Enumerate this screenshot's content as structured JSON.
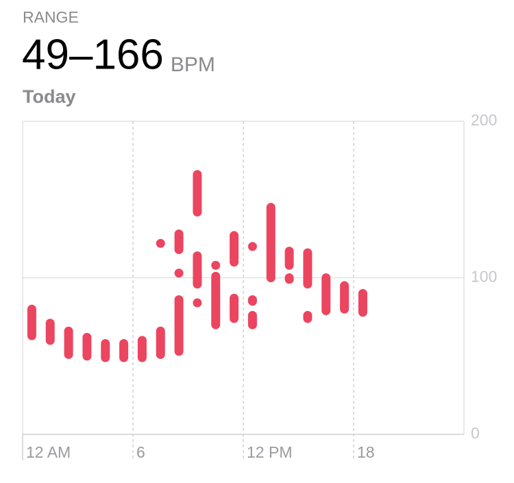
{
  "chart_data": {
    "type": "range-bar",
    "label": "RANGE",
    "headline": "49–166",
    "unit": "BPM",
    "period": "Today",
    "color": "#eb4560",
    "xlim": [
      0,
      24
    ],
    "xticks": [
      {
        "value": 0,
        "label": "12 AM"
      },
      6,
      {
        "value": 12,
        "label": "12 PM"
      },
      18
    ],
    "ylim": [
      0,
      200
    ],
    "yticks": [
      0,
      100,
      200
    ],
    "bars": [
      {
        "x": 0.5,
        "low": 63,
        "high": 80
      },
      {
        "x": 1.5,
        "low": 60,
        "high": 71
      },
      {
        "x": 2.5,
        "low": 51,
        "high": 66
      },
      {
        "x": 3.5,
        "low": 50,
        "high": 62
      },
      {
        "x": 4.5,
        "low": 49,
        "high": 58
      },
      {
        "x": 5.5,
        "low": 49,
        "high": 58
      },
      {
        "x": 6.5,
        "low": 49,
        "high": 60
      },
      {
        "x": 7.5,
        "low": 51,
        "high": 66
      },
      {
        "x": 7.5,
        "low": 122,
        "high": 122
      },
      {
        "x": 8.5,
        "low": 118,
        "high": 128
      },
      {
        "x": 8.5,
        "low": 103,
        "high": 103
      },
      {
        "x": 8.5,
        "low": 53,
        "high": 86
      },
      {
        "x": 9.5,
        "low": 142,
        "high": 166
      },
      {
        "x": 9.5,
        "low": 96,
        "high": 114
      },
      {
        "x": 9.5,
        "low": 84,
        "high": 84
      },
      {
        "x": 10.5,
        "low": 108,
        "high": 108
      },
      {
        "x": 10.5,
        "low": 70,
        "high": 101
      },
      {
        "x": 11.5,
        "low": 110,
        "high": 127
      },
      {
        "x": 11.5,
        "low": 74,
        "high": 87
      },
      {
        "x": 12.5,
        "low": 120,
        "high": 120
      },
      {
        "x": 12.5,
        "low": 85,
        "high": 86
      },
      {
        "x": 12.5,
        "low": 70,
        "high": 76
      },
      {
        "x": 13.5,
        "low": 100,
        "high": 145
      },
      {
        "x": 14.5,
        "low": 108,
        "high": 117
      },
      {
        "x": 14.5,
        "low": 99,
        "high": 100
      },
      {
        "x": 15.5,
        "low": 96,
        "high": 116
      },
      {
        "x": 15.5,
        "low": 74,
        "high": 76
      },
      {
        "x": 16.5,
        "low": 79,
        "high": 100
      },
      {
        "x": 17.5,
        "low": 80,
        "high": 95
      },
      {
        "x": 18.5,
        "low": 78,
        "high": 90
      }
    ]
  }
}
